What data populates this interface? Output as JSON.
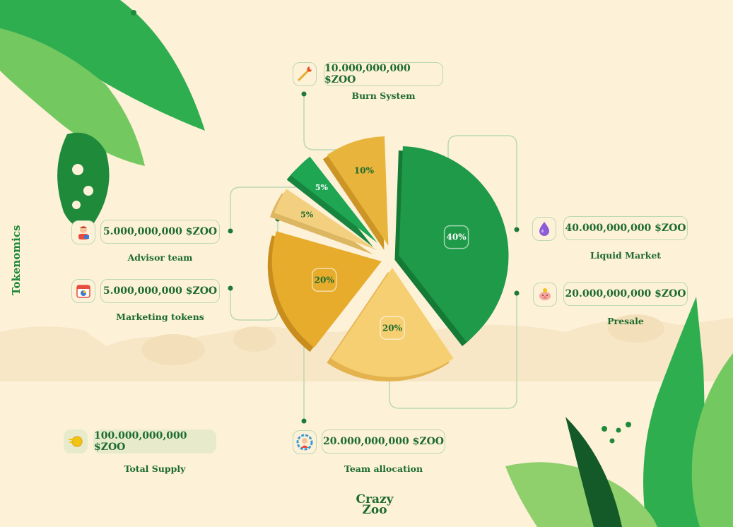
{
  "title": "Tokenomics",
  "logo": {
    "line1": "Crazy",
    "line2": "Zoo"
  },
  "chart_data": {
    "type": "pie",
    "title": "Tokenomics",
    "slices": [
      {
        "label": "Liquid Market",
        "value": 40,
        "percent_label": "40%",
        "amount": "40.000,000,000  $ZOO",
        "color": "#1e9a48"
      },
      {
        "label": "Presale",
        "value": 20,
        "percent_label": "20%",
        "amount": "20.000,000,000 $ZOO",
        "color": "#f6cf72"
      },
      {
        "label": "Team allocation",
        "value": 20,
        "percent_label": "20%",
        "amount": "20.000,000,000 $ZOO",
        "color": "#e7ac2c"
      },
      {
        "label": "Marketing tokens",
        "value": 5,
        "percent_label": "5%",
        "amount": "5.000,000,000 $ZOO",
        "color": "#f3d080"
      },
      {
        "label": "Advisor team",
        "value": 5,
        "percent_label": "5%",
        "amount": "5.000,000,000 $ZOO",
        "color": "#1fa653"
      },
      {
        "label": "Burn System",
        "value": 10,
        "percent_label": "10%",
        "amount": "10.000,000,000 $ZOO",
        "color": "#e8b43b"
      }
    ],
    "total": {
      "label": "Total Supply",
      "amount": "100.000,000,000 $ZOO"
    }
  },
  "icons": {
    "burn": "match-fire-icon",
    "advisor": "advisor-person-icon",
    "marketing": "calendar-chart-icon",
    "liquid": "water-drop-icon",
    "presale": "piggy-bank-icon",
    "team": "gear-person-icon",
    "total": "coins-icon"
  }
}
